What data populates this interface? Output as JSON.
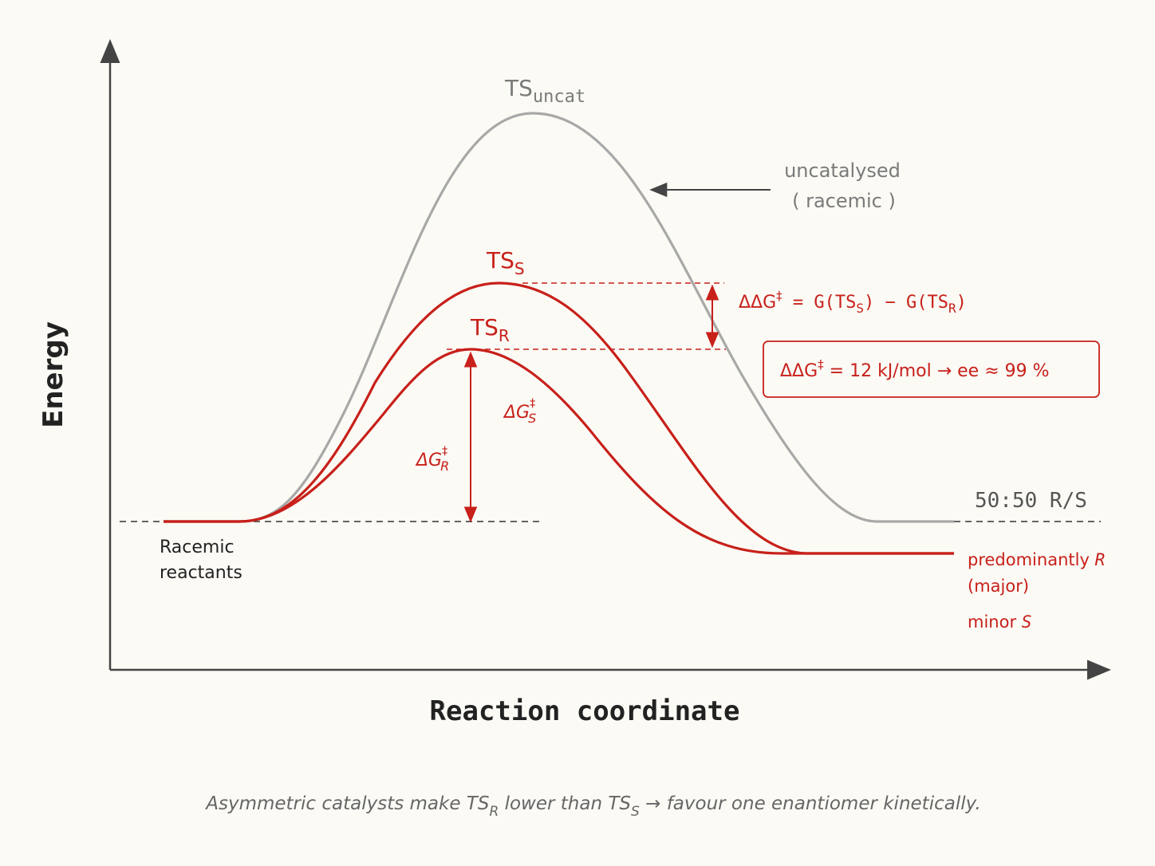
{
  "axes": {
    "y_label": "Energy",
    "x_label": "Reaction coordinate"
  },
  "curves": {
    "uncatalysed": {
      "peak_label_main": "TS",
      "peak_label_sub": "uncat",
      "color": "#a8a8a8"
    },
    "ts_s": {
      "peak_label_main": "TS",
      "peak_label_sub": "S",
      "color": "#c8201a"
    },
    "ts_r": {
      "peak_label_main": "TS",
      "peak_label_sub": "R",
      "color": "#c8201a"
    }
  },
  "annotations": {
    "uncat_line1": "uncatalysed",
    "uncat_line2": "( racemic )",
    "ddg_prefix": "ΔΔG",
    "ddg_dagger": "‡",
    "ddg_eq": " = G(TS",
    "ddg_sub_s": "S",
    "ddg_mid": ") − G(TS",
    "ddg_sub_r": "R",
    "ddg_close": ")",
    "box_prefix": "ΔΔG",
    "box_dagger": "‡",
    "box_rest": " = 12 kJ/mol → ee ≈ 99 %",
    "dg_r_main": "ΔG",
    "dg_r_sup": "‡",
    "dg_r_sub": "R",
    "dg_s_main": "ΔG",
    "dg_s_sup": "‡",
    "dg_s_sub": "S",
    "reactants_line1": "Racemic",
    "reactants_line2": "reactants",
    "racemic_product": "50:50 R/S",
    "major_line1_text": "predominantly ",
    "major_line1_italic": "R",
    "major_line2": "(major)",
    "minor_text": "minor ",
    "minor_italic": "S"
  },
  "caption": {
    "part1": "Asymmetric catalysts make ",
    "ts1": "TS",
    "ts1_sub": "R",
    "part2": "  lower than ",
    "ts2": "TS",
    "ts2_sub": "S",
    "part3": " → favour one enantiomer kinetically."
  },
  "colors": {
    "red": "#c8201a",
    "gray": "#a8a8a8",
    "axis": "#444444",
    "background": "#fbfaf5"
  }
}
